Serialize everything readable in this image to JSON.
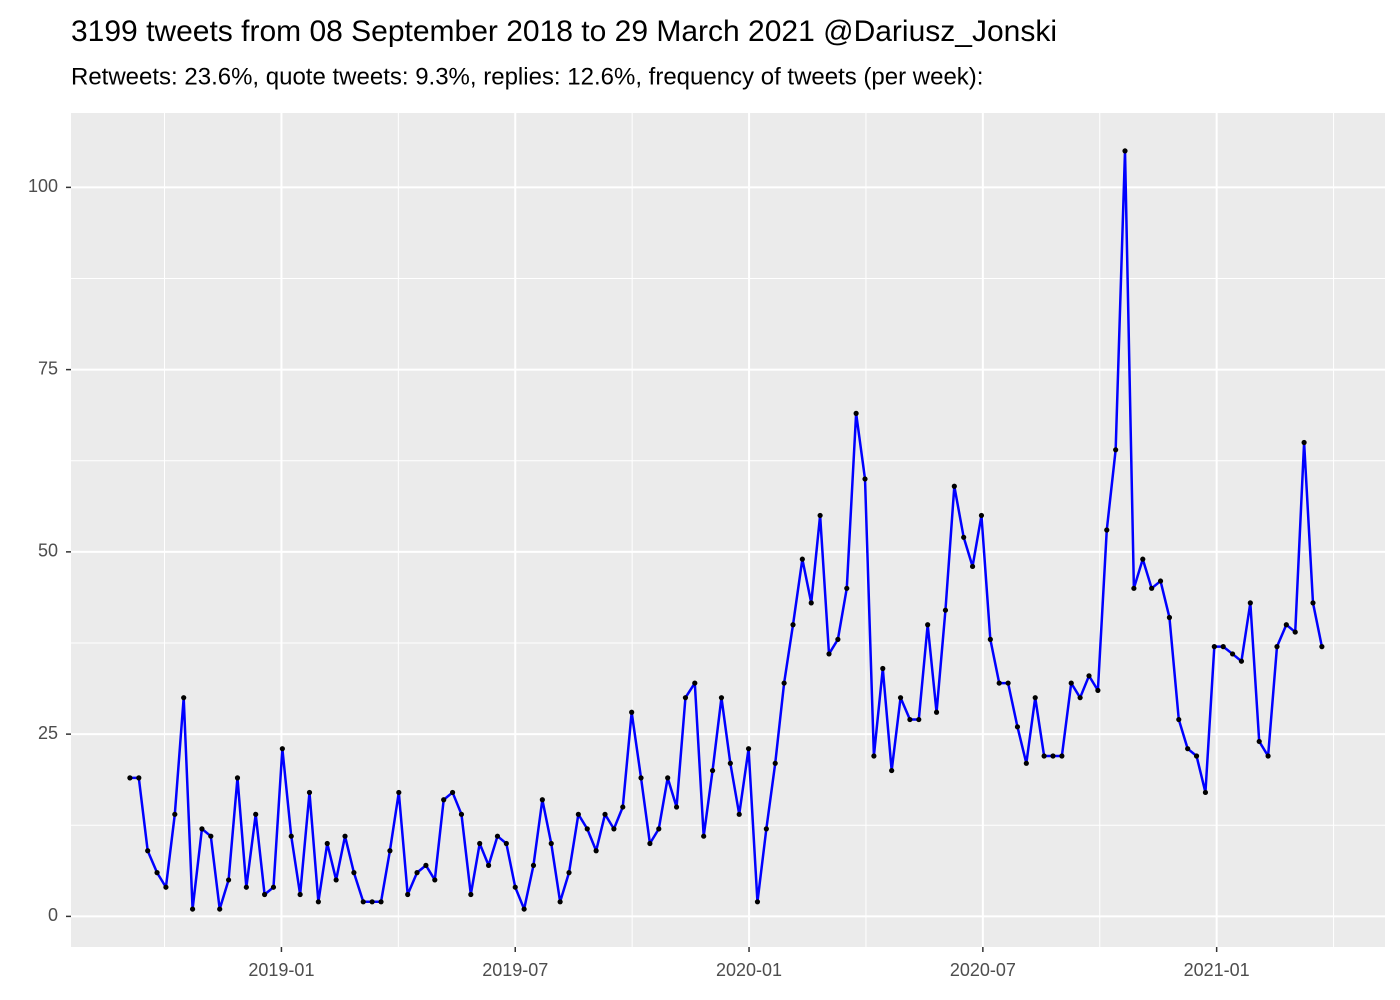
{
  "chart_data": {
    "type": "line",
    "title": "3199 tweets from 08 September 2018 to 29 March 2021 @Dariusz_Jonski",
    "subtitle": "Retweets: 23.6%, quote tweets: 9.3%, replies: 12.6%, frequency of tweets (per week):",
    "x": [
      2018.676,
      2018.695,
      2018.714,
      2018.734,
      2018.753,
      2018.772,
      2018.791,
      2018.81,
      2018.83,
      2018.849,
      2018.868,
      2018.887,
      2018.906,
      2018.925,
      2018.945,
      2018.964,
      2018.983,
      2019.002,
      2019.021,
      2019.04,
      2019.06,
      2019.079,
      2019.098,
      2019.117,
      2019.136,
      2019.155,
      2019.175,
      2019.194,
      2019.213,
      2019.232,
      2019.251,
      2019.27,
      2019.29,
      2019.309,
      2019.328,
      2019.347,
      2019.366,
      2019.385,
      2019.405,
      2019.424,
      2019.443,
      2019.462,
      2019.481,
      2019.5,
      2019.519,
      2019.539,
      2019.558,
      2019.577,
      2019.596,
      2019.615,
      2019.635,
      2019.654,
      2019.673,
      2019.692,
      2019.711,
      2019.73,
      2019.749,
      2019.769,
      2019.788,
      2019.807,
      2019.826,
      2019.845,
      2019.864,
      2019.884,
      2019.903,
      2019.922,
      2019.941,
      2019.96,
      2019.979,
      2019.999,
      2020.018,
      2020.037,
      2020.056,
      2020.075,
      2020.094,
      2020.114,
      2020.133,
      2020.152,
      2020.171,
      2020.19,
      2020.209,
      2020.229,
      2020.248,
      2020.267,
      2020.286,
      2020.305,
      2020.324,
      2020.344,
      2020.363,
      2020.382,
      2020.401,
      2020.42,
      2020.439,
      2020.459,
      2020.478,
      2020.497,
      2020.516,
      2020.535,
      2020.554,
      2020.574,
      2020.593,
      2020.612,
      2020.631,
      2020.65,
      2020.669,
      2020.689,
      2020.708,
      2020.727,
      2020.746,
      2020.765,
      2020.784,
      2020.804,
      2020.823,
      2020.842,
      2020.861,
      2020.88,
      2020.899,
      2020.919,
      2020.938,
      2020.957,
      2020.976,
      2020.995,
      2021.014,
      2021.034,
      2021.053,
      2021.072,
      2021.091,
      2021.11,
      2021.129,
      2021.149,
      2021.168,
      2021.187,
      2021.206,
      2021.225
    ],
    "values": [
      19,
      19,
      9,
      6,
      4,
      14,
      30,
      1,
      12,
      11,
      1,
      5,
      19,
      4,
      14,
      3,
      4,
      23,
      11,
      3,
      17,
      2,
      10,
      5,
      11,
      6,
      2,
      2,
      2,
      9,
      17,
      3,
      6,
      7,
      5,
      16,
      17,
      14,
      3,
      10,
      7,
      11,
      10,
      4,
      1,
      7,
      16,
      10,
      2,
      6,
      14,
      12,
      9,
      14,
      12,
      15,
      28,
      19,
      10,
      12,
      19,
      15,
      30,
      32,
      11,
      20,
      30,
      21,
      14,
      23,
      2,
      12,
      21,
      32,
      40,
      49,
      43,
      55,
      36,
      38,
      45,
      69,
      60,
      22,
      34,
      20,
      30,
      27,
      27,
      40,
      28,
      42,
      59,
      52,
      48,
      55,
      38,
      32,
      32,
      26,
      21,
      30,
      22,
      22,
      22,
      32,
      30,
      33,
      31,
      53,
      64,
      105,
      45,
      49,
      45,
      46,
      41,
      27,
      23,
      22,
      17,
      37,
      37,
      36,
      35,
      43,
      24,
      22,
      37,
      40,
      39,
      65,
      43,
      37
    ],
    "color": "#0000ff",
    "point_color": "#000000",
    "xlim": [
      2018.55,
      2021.36
    ],
    "xticks": [
      {
        "value": 2019.0,
        "label": "2019-01"
      },
      {
        "value": 2019.5,
        "label": "2019-07"
      },
      {
        "value": 2020.0,
        "label": "2020-01"
      },
      {
        "value": 2020.5,
        "label": "2020-07"
      },
      {
        "value": 2021.0,
        "label": "2021-01"
      }
    ],
    "xminorticks": [
      2018.75,
      2019.25,
      2019.75,
      2020.25,
      2020.75,
      2021.25
    ],
    "ylim": [
      -4.2,
      110.2
    ],
    "yticks": [
      0,
      25,
      50,
      75,
      100
    ],
    "yminorticks": [
      12.5,
      37.5,
      62.5,
      87.5
    ],
    "grid": true
  }
}
